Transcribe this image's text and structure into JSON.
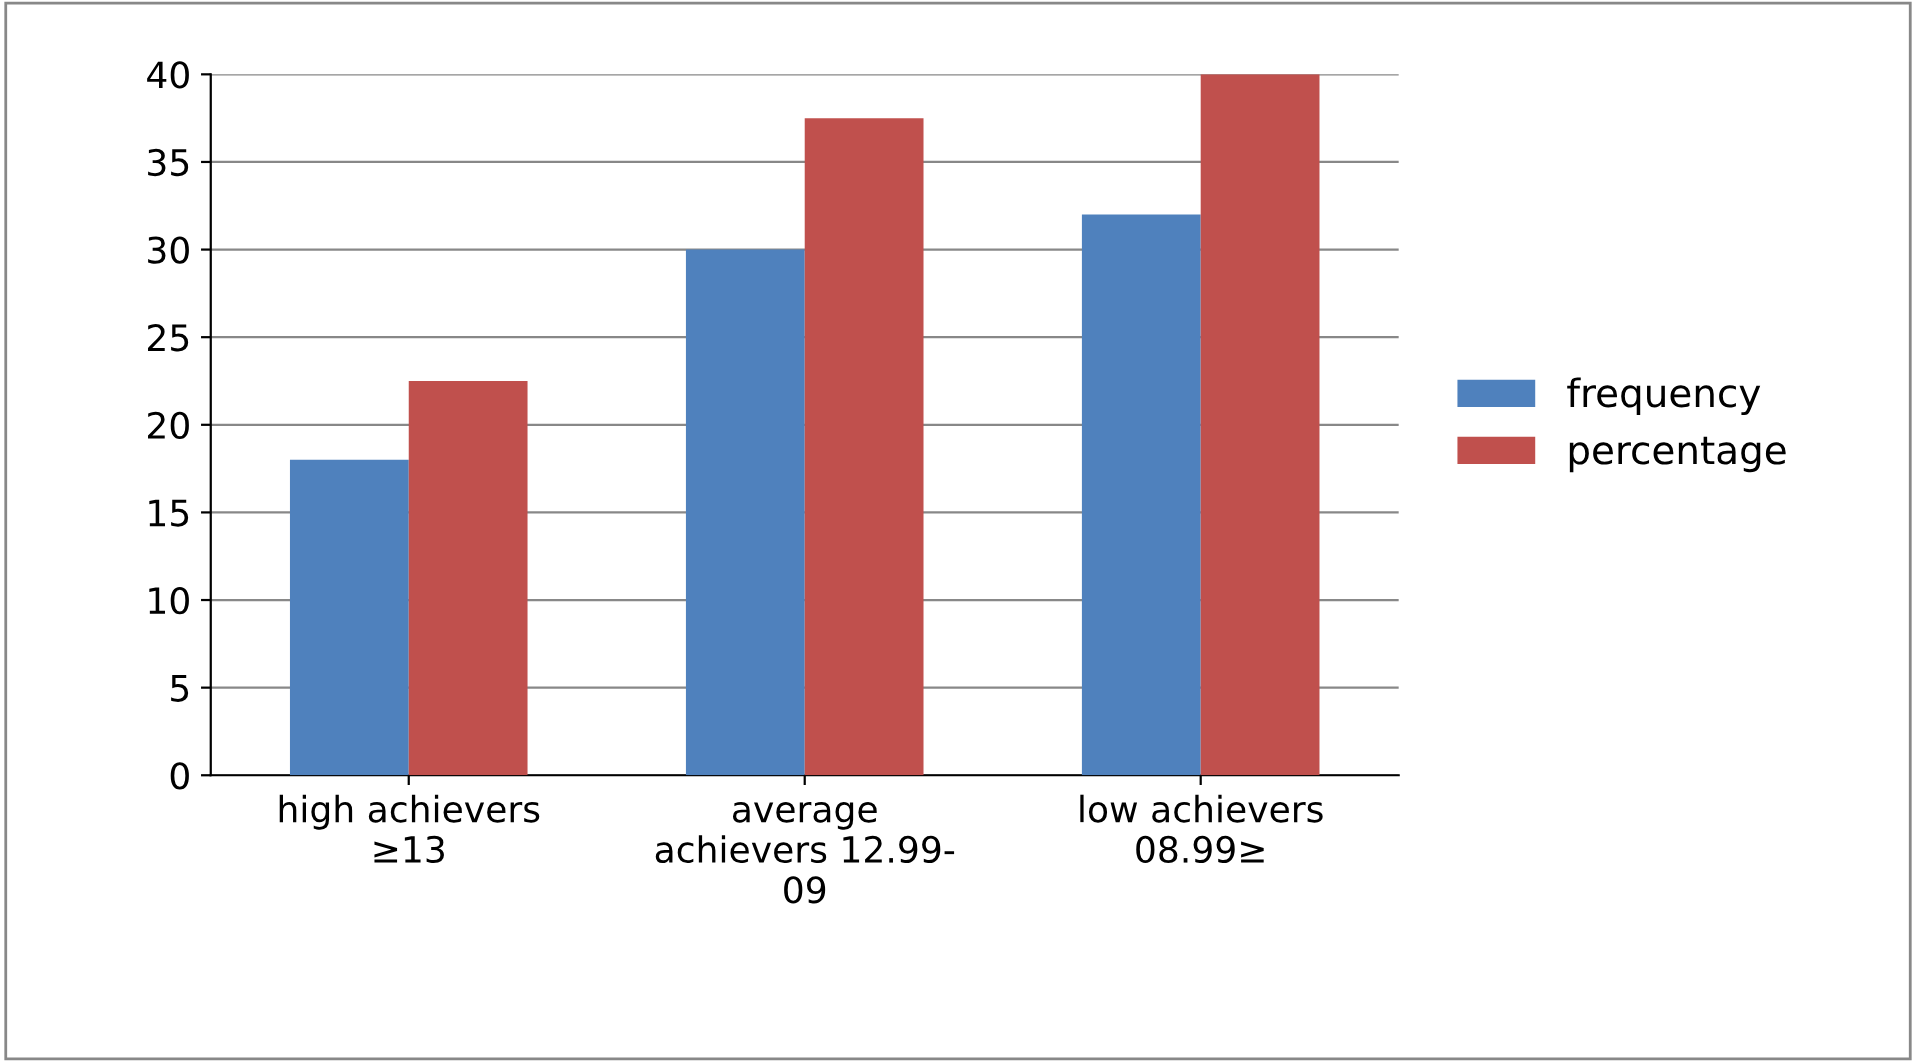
{
  "chart_data": {
    "type": "bar",
    "categories": [
      "high achievers\n≥13",
      "average\nachievers 12.99-\n09",
      "low achievers\n08.99≥"
    ],
    "series": [
      {
        "name": "frequency",
        "color": "#4f81bd",
        "values": [
          18,
          30,
          32
        ]
      },
      {
        "name": "percentage",
        "color": "#c0504d",
        "values": [
          22.5,
          37.5,
          40
        ]
      }
    ],
    "ylim": [
      0,
      40
    ],
    "yticks": [
      0,
      5,
      10,
      15,
      20,
      25,
      30,
      35,
      40
    ],
    "grid": "y",
    "legend": "right"
  }
}
